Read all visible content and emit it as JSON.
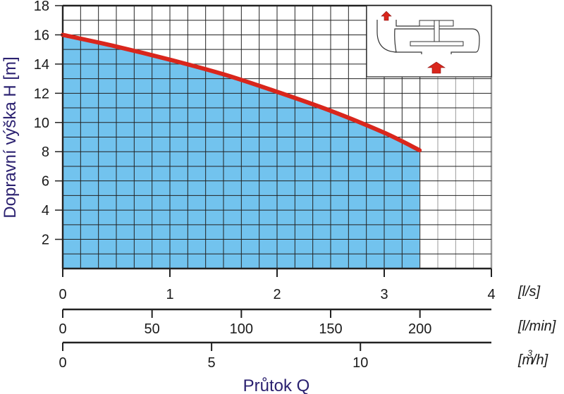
{
  "chart_data": {
    "type": "area",
    "ylabel": "Dopravní výška H [m]",
    "xlabel": "Průtok Q",
    "ylim": [
      0,
      18
    ],
    "yticks": [
      2,
      4,
      6,
      8,
      10,
      12,
      14,
      16,
      18
    ],
    "grid": true,
    "x_axes": [
      {
        "unit": "[l/s]",
        "range": [
          0,
          4
        ],
        "ticks": [
          0,
          1,
          2,
          3,
          4
        ]
      },
      {
        "unit": "[l/min]",
        "ticks": [
          0,
          50,
          100,
          150,
          200
        ]
      },
      {
        "unit": "[m3/h]",
        "unit_base": "[m",
        "unit_sup": "3",
        "unit_tail": "/h]",
        "ticks": [
          0,
          5,
          10
        ]
      }
    ],
    "series": [
      {
        "x": [
          0,
          0.5,
          1,
          1.5,
          2,
          2.5,
          3,
          3.33
        ],
        "y": [
          16,
          15.2,
          14.3,
          13.3,
          12.1,
          10.8,
          9.3,
          8.1
        ]
      }
    ],
    "colors": {
      "curve": "#d9261c",
      "fill": "#72c3ee",
      "grid": "#222222",
      "text_title": "#2b2170"
    }
  }
}
